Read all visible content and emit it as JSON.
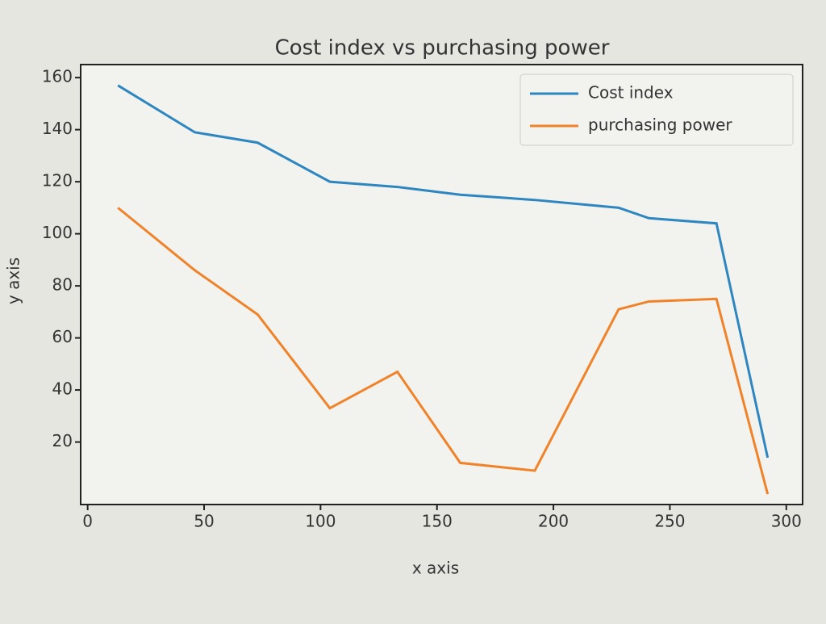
{
  "chart_data": {
    "type": "line",
    "title": "Cost index vs purchasing power",
    "x_label": "x axis",
    "y_label": "y axis",
    "x": [
      13,
      46,
      73,
      104,
      133,
      160,
      192,
      228,
      241,
      270,
      292
    ],
    "series": [
      {
        "name": "Cost index",
        "color": "#2e86c1",
        "values": [
          157,
          139,
          135,
          120,
          118,
          115,
          113,
          110,
          106,
          104,
          14
        ]
      },
      {
        "name": "purchasing power",
        "color": "#f0832a",
        "values": [
          110,
          86,
          69,
          33,
          47,
          12,
          9,
          71,
          74,
          75,
          0
        ]
      }
    ],
    "xlim": [
      -3,
      307
    ],
    "xticks": [
      0,
      50,
      100,
      150,
      200,
      250,
      300
    ],
    "ylim": [
      -4,
      165
    ],
    "yticks": [
      20,
      40,
      60,
      80,
      100,
      120,
      140,
      160
    ],
    "grid": false,
    "legend": "upper right"
  }
}
